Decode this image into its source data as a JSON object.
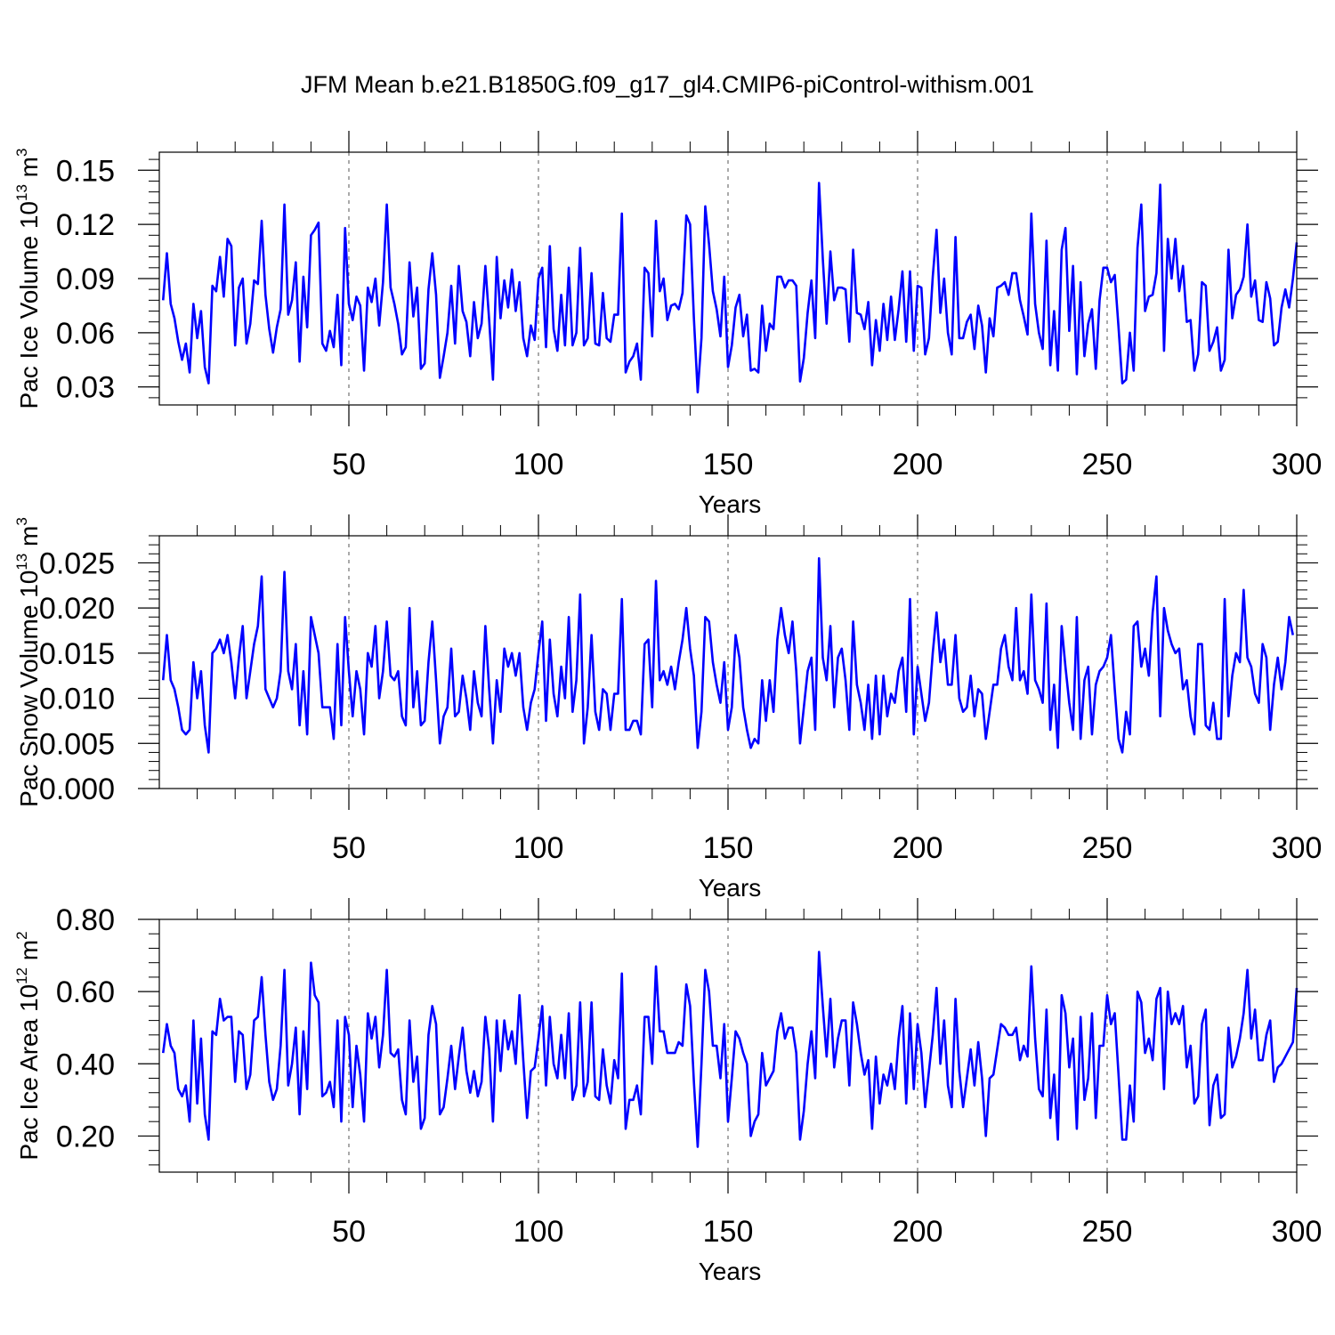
{
  "title": "JFM Mean b.e21.B1850G.f09_g17_gl4.CMIP6-piControl-withism.001",
  "colors": {
    "line": "#0000ff",
    "axis": "#000000",
    "refline": "#555555"
  },
  "chart_data": [
    {
      "type": "line",
      "ylabel": {
        "base": "Pac Ice Volume 10",
        "exp": "13",
        "unit": " m",
        "unit_exp": "3"
      },
      "xlabel": "Years",
      "xlim": [
        0,
        300
      ],
      "ylim": [
        0.02,
        0.16
      ],
      "xticks": [
        50,
        100,
        150,
        200,
        250,
        300
      ],
      "yticks": [
        0.03,
        0.06,
        0.09,
        0.12,
        0.15
      ],
      "ytick_labels": [
        "0.03",
        "0.06",
        "0.09",
        "0.12",
        "0.15"
      ],
      "reference_lines_x": [
        50,
        100,
        150,
        200,
        250
      ],
      "x_start": 1,
      "values": [
        0.078,
        0.104,
        0.076,
        0.068,
        0.055,
        0.045,
        0.054,
        0.038,
        0.076,
        0.057,
        0.072,
        0.041,
        0.032,
        0.086,
        0.083,
        0.102,
        0.08,
        0.112,
        0.108,
        0.053,
        0.085,
        0.09,
        0.054,
        0.065,
        0.089,
        0.087,
        0.122,
        0.081,
        0.062,
        0.049,
        0.063,
        0.073,
        0.131,
        0.07,
        0.078,
        0.099,
        0.044,
        0.091,
        0.063,
        0.114,
        0.117,
        0.121,
        0.054,
        0.05,
        0.061,
        0.052,
        0.081,
        0.042,
        0.118,
        0.076,
        0.067,
        0.08,
        0.075,
        0.039,
        0.085,
        0.077,
        0.09,
        0.064,
        0.088,
        0.131,
        0.085,
        0.076,
        0.065,
        0.048,
        0.052,
        0.099,
        0.069,
        0.085,
        0.04,
        0.043,
        0.084,
        0.104,
        0.081,
        0.035,
        0.047,
        0.06,
        0.086,
        0.054,
        0.097,
        0.072,
        0.066,
        0.047,
        0.077,
        0.057,
        0.065,
        0.097,
        0.067,
        0.034,
        0.102,
        0.068,
        0.089,
        0.074,
        0.095,
        0.072,
        0.088,
        0.057,
        0.047,
        0.064,
        0.056,
        0.09,
        0.096,
        0.052,
        0.108,
        0.062,
        0.05,
        0.081,
        0.053,
        0.096,
        0.053,
        0.06,
        0.107,
        0.053,
        0.057,
        0.093,
        0.054,
        0.053,
        0.082,
        0.057,
        0.055,
        0.07,
        0.07,
        0.126,
        0.038,
        0.044,
        0.047,
        0.054,
        0.034,
        0.096,
        0.093,
        0.058,
        0.122,
        0.083,
        0.09,
        0.067,
        0.075,
        0.076,
        0.073,
        0.082,
        0.125,
        0.12,
        0.068,
        0.027,
        0.057,
        0.13,
        0.109,
        0.083,
        0.073,
        0.058,
        0.091,
        0.041,
        0.053,
        0.074,
        0.081,
        0.058,
        0.07,
        0.039,
        0.04,
        0.038,
        0.075,
        0.05,
        0.065,
        0.062,
        0.091,
        0.091,
        0.085,
        0.089,
        0.089,
        0.086,
        0.033,
        0.046,
        0.071,
        0.089,
        0.057,
        0.143,
        0.101,
        0.065,
        0.105,
        0.078,
        0.085,
        0.085,
        0.084,
        0.055,
        0.106,
        0.071,
        0.07,
        0.062,
        0.077,
        0.042,
        0.067,
        0.05,
        0.076,
        0.056,
        0.08,
        0.056,
        0.073,
        0.094,
        0.055,
        0.094,
        0.05,
        0.086,
        0.085,
        0.048,
        0.057,
        0.091,
        0.117,
        0.071,
        0.09,
        0.06,
        0.048,
        0.113,
        0.057,
        0.057,
        0.066,
        0.07,
        0.051,
        0.075,
        0.064,
        0.038,
        0.068,
        0.058,
        0.085,
        0.086,
        0.088,
        0.081,
        0.093,
        0.093,
        0.078,
        0.069,
        0.059,
        0.126,
        0.076,
        0.06,
        0.051,
        0.111,
        0.042,
        0.072,
        0.039,
        0.106,
        0.118,
        0.061,
        0.097,
        0.037,
        0.088,
        0.047,
        0.065,
        0.073,
        0.04,
        0.078,
        0.096,
        0.096,
        0.088,
        0.092,
        0.063,
        0.032,
        0.034,
        0.06,
        0.039,
        0.107,
        0.131,
        0.072,
        0.08,
        0.081,
        0.093,
        0.142,
        0.05,
        0.112,
        0.09,
        0.112,
        0.083,
        0.097,
        0.066,
        0.067,
        0.039,
        0.048,
        0.088,
        0.086,
        0.05,
        0.055,
        0.063,
        0.039,
        0.045,
        0.106,
        0.068,
        0.081,
        0.084,
        0.091,
        0.12,
        0.08,
        0.089,
        0.067,
        0.066,
        0.088,
        0.079,
        0.053,
        0.055,
        0.074,
        0.084,
        0.074,
        0.09,
        0.11
      ]
    },
    {
      "type": "line",
      "ylabel": {
        "base": "Pac Snow Volume 10",
        "exp": "13",
        "unit": " m",
        "unit_exp": "3"
      },
      "xlabel": "Years",
      "xlim": [
        0,
        300
      ],
      "ylim": [
        0.0,
        0.028
      ],
      "xticks": [
        50,
        100,
        150,
        200,
        250,
        300
      ],
      "yticks": [
        0.0,
        0.005,
        0.01,
        0.015,
        0.02,
        0.025
      ],
      "ytick_labels": [
        "0.000",
        "0.005",
        "0.010",
        "0.015",
        "0.020",
        "0.025"
      ],
      "reference_lines_x": [
        50,
        100,
        150,
        200,
        250
      ],
      "x_start": 1,
      "values": [
        0.012,
        0.017,
        0.012,
        0.011,
        0.009,
        0.0065,
        0.006,
        0.0065,
        0.014,
        0.01,
        0.013,
        0.007,
        0.004,
        0.015,
        0.0155,
        0.0165,
        0.015,
        0.017,
        0.014,
        0.01,
        0.0145,
        0.018,
        0.01,
        0.013,
        0.016,
        0.018,
        0.0235,
        0.011,
        0.01,
        0.009,
        0.01,
        0.013,
        0.024,
        0.013,
        0.011,
        0.016,
        0.007,
        0.013,
        0.006,
        0.019,
        0.017,
        0.015,
        0.009,
        0.009,
        0.009,
        0.0055,
        0.016,
        0.007,
        0.019,
        0.013,
        0.008,
        0.013,
        0.011,
        0.006,
        0.015,
        0.0135,
        0.018,
        0.01,
        0.013,
        0.0185,
        0.0125,
        0.012,
        0.013,
        0.008,
        0.007,
        0.02,
        0.009,
        0.013,
        0.007,
        0.0075,
        0.014,
        0.0185,
        0.012,
        0.005,
        0.008,
        0.009,
        0.0155,
        0.008,
        0.0085,
        0.0125,
        0.01,
        0.0065,
        0.013,
        0.0095,
        0.008,
        0.018,
        0.011,
        0.005,
        0.012,
        0.0085,
        0.0155,
        0.0135,
        0.015,
        0.0125,
        0.015,
        0.009,
        0.0065,
        0.0095,
        0.011,
        0.015,
        0.0185,
        0.0075,
        0.0165,
        0.0105,
        0.008,
        0.0135,
        0.01,
        0.019,
        0.0085,
        0.012,
        0.0215,
        0.005,
        0.009,
        0.017,
        0.0085,
        0.0065,
        0.011,
        0.0105,
        0.0065,
        0.0105,
        0.0105,
        0.021,
        0.0065,
        0.0065,
        0.0075,
        0.0075,
        0.006,
        0.016,
        0.0165,
        0.009,
        0.023,
        0.012,
        0.013,
        0.0115,
        0.0135,
        0.011,
        0.014,
        0.0165,
        0.02,
        0.0155,
        0.0125,
        0.0045,
        0.0085,
        0.019,
        0.0185,
        0.014,
        0.0115,
        0.0095,
        0.014,
        0.0065,
        0.009,
        0.017,
        0.0145,
        0.009,
        0.0065,
        0.0045,
        0.0055,
        0.005,
        0.012,
        0.0075,
        0.012,
        0.0085,
        0.0165,
        0.02,
        0.017,
        0.015,
        0.0185,
        0.013,
        0.005,
        0.009,
        0.013,
        0.0145,
        0.0065,
        0.0255,
        0.0145,
        0.012,
        0.018,
        0.009,
        0.0145,
        0.0155,
        0.012,
        0.0065,
        0.0185,
        0.0115,
        0.0095,
        0.0065,
        0.0115,
        0.0055,
        0.0125,
        0.006,
        0.0125,
        0.008,
        0.0105,
        0.0095,
        0.013,
        0.0145,
        0.0085,
        0.021,
        0.006,
        0.0135,
        0.0105,
        0.0075,
        0.0095,
        0.015,
        0.0195,
        0.014,
        0.0165,
        0.0115,
        0.0115,
        0.017,
        0.01,
        0.0085,
        0.009,
        0.0125,
        0.008,
        0.011,
        0.0105,
        0.0055,
        0.0085,
        0.0115,
        0.0115,
        0.0155,
        0.017,
        0.0135,
        0.012,
        0.02,
        0.012,
        0.013,
        0.0105,
        0.0215,
        0.012,
        0.011,
        0.0095,
        0.0205,
        0.0065,
        0.0115,
        0.0045,
        0.018,
        0.0135,
        0.0095,
        0.0065,
        0.019,
        0.0055,
        0.012,
        0.0135,
        0.006,
        0.0115,
        0.013,
        0.0135,
        0.0145,
        0.017,
        0.011,
        0.0055,
        0.004,
        0.0085,
        0.006,
        0.018,
        0.0185,
        0.0135,
        0.0155,
        0.0125,
        0.0195,
        0.0235,
        0.008,
        0.02,
        0.0175,
        0.016,
        0.015,
        0.0155,
        0.011,
        0.012,
        0.008,
        0.006,
        0.016,
        0.016,
        0.007,
        0.0065,
        0.0095,
        0.0055,
        0.0055,
        0.021,
        0.008,
        0.0125,
        0.015,
        0.014,
        0.022,
        0.0145,
        0.0135,
        0.0105,
        0.0095,
        0.016,
        0.0145,
        0.0065,
        0.0115,
        0.0145,
        0.011,
        0.014,
        0.019,
        0.017
      ]
    },
    {
      "type": "line",
      "ylabel": {
        "base": "Pac Ice Area 10",
        "exp": "12",
        "unit": " m",
        "unit_exp": "2"
      },
      "xlabel": "Years",
      "xlim": [
        0,
        300
      ],
      "ylim": [
        0.1,
        0.8
      ],
      "xticks": [
        50,
        100,
        150,
        200,
        250,
        300
      ],
      "yticks": [
        0.2,
        0.4,
        0.6,
        0.8
      ],
      "ytick_labels": [
        "0.20",
        "0.40",
        "0.60",
        "0.80"
      ],
      "reference_lines_x": [
        50,
        100,
        150,
        200,
        250
      ],
      "x_start": 1,
      "values": [
        0.43,
        0.51,
        0.45,
        0.43,
        0.33,
        0.31,
        0.34,
        0.24,
        0.52,
        0.29,
        0.47,
        0.26,
        0.19,
        0.49,
        0.48,
        0.58,
        0.52,
        0.53,
        0.53,
        0.35,
        0.49,
        0.48,
        0.33,
        0.37,
        0.52,
        0.53,
        0.64,
        0.48,
        0.35,
        0.3,
        0.33,
        0.45,
        0.66,
        0.34,
        0.4,
        0.5,
        0.26,
        0.49,
        0.33,
        0.68,
        0.59,
        0.57,
        0.31,
        0.32,
        0.35,
        0.28,
        0.52,
        0.24,
        0.53,
        0.48,
        0.28,
        0.45,
        0.37,
        0.24,
        0.54,
        0.47,
        0.53,
        0.39,
        0.48,
        0.66,
        0.43,
        0.42,
        0.44,
        0.3,
        0.26,
        0.52,
        0.35,
        0.42,
        0.22,
        0.25,
        0.48,
        0.56,
        0.51,
        0.26,
        0.28,
        0.36,
        0.45,
        0.33,
        0.42,
        0.5,
        0.38,
        0.32,
        0.38,
        0.31,
        0.35,
        0.53,
        0.44,
        0.24,
        0.52,
        0.38,
        0.52,
        0.44,
        0.49,
        0.4,
        0.59,
        0.41,
        0.25,
        0.38,
        0.39,
        0.47,
        0.56,
        0.34,
        0.53,
        0.4,
        0.36,
        0.48,
        0.36,
        0.54,
        0.3,
        0.34,
        0.57,
        0.31,
        0.35,
        0.57,
        0.31,
        0.3,
        0.44,
        0.34,
        0.29,
        0.41,
        0.36,
        0.65,
        0.22,
        0.3,
        0.3,
        0.34,
        0.26,
        0.53,
        0.53,
        0.4,
        0.67,
        0.49,
        0.49,
        0.43,
        0.43,
        0.43,
        0.46,
        0.45,
        0.62,
        0.56,
        0.35,
        0.17,
        0.4,
        0.66,
        0.6,
        0.45,
        0.45,
        0.36,
        0.51,
        0.24,
        0.36,
        0.49,
        0.47,
        0.43,
        0.4,
        0.2,
        0.24,
        0.26,
        0.43,
        0.34,
        0.36,
        0.38,
        0.49,
        0.54,
        0.47,
        0.5,
        0.5,
        0.43,
        0.19,
        0.27,
        0.4,
        0.49,
        0.36,
        0.71,
        0.56,
        0.42,
        0.58,
        0.39,
        0.47,
        0.52,
        0.52,
        0.34,
        0.57,
        0.51,
        0.43,
        0.37,
        0.41,
        0.22,
        0.42,
        0.29,
        0.37,
        0.34,
        0.4,
        0.33,
        0.47,
        0.56,
        0.29,
        0.54,
        0.33,
        0.51,
        0.43,
        0.28,
        0.38,
        0.48,
        0.61,
        0.4,
        0.52,
        0.34,
        0.28,
        0.58,
        0.38,
        0.28,
        0.36,
        0.44,
        0.34,
        0.46,
        0.36,
        0.2,
        0.36,
        0.37,
        0.44,
        0.51,
        0.5,
        0.48,
        0.48,
        0.5,
        0.41,
        0.45,
        0.42,
        0.67,
        0.47,
        0.33,
        0.31,
        0.55,
        0.25,
        0.37,
        0.19,
        0.59,
        0.54,
        0.39,
        0.47,
        0.22,
        0.53,
        0.3,
        0.36,
        0.54,
        0.25,
        0.45,
        0.45,
        0.59,
        0.51,
        0.54,
        0.37,
        0.19,
        0.19,
        0.34,
        0.24,
        0.6,
        0.57,
        0.43,
        0.47,
        0.41,
        0.58,
        0.61,
        0.33,
        0.6,
        0.51,
        0.54,
        0.51,
        0.56,
        0.39,
        0.45,
        0.29,
        0.31,
        0.51,
        0.55,
        0.23,
        0.34,
        0.37,
        0.25,
        0.26,
        0.5,
        0.39,
        0.42,
        0.47,
        0.54,
        0.66,
        0.47,
        0.55,
        0.41,
        0.41,
        0.48,
        0.52,
        0.35,
        0.39,
        0.4,
        0.42,
        0.44,
        0.46,
        0.61
      ]
    }
  ]
}
